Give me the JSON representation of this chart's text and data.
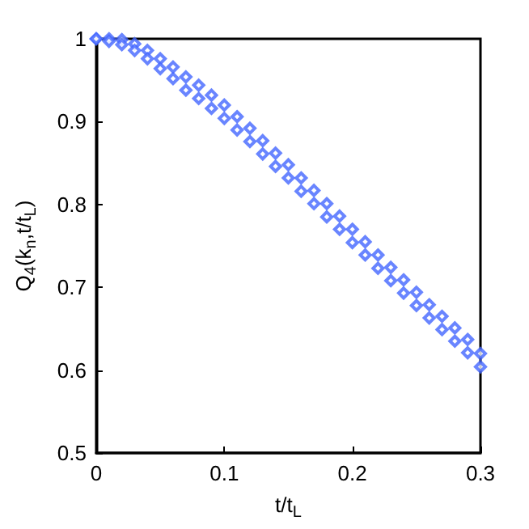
{
  "chart_data": {
    "type": "scatter",
    "xlabel": "t/t$_{L}$",
    "ylabel": "Q$_{4}$(k$_{n}$,t/t$_{L}$)",
    "x": [
      0,
      0.01,
      0.02,
      0.03,
      0.04,
      0.05,
      0.06,
      0.07,
      0.08,
      0.09,
      0.1,
      0.11,
      0.12,
      0.13,
      0.14,
      0.15,
      0.16,
      0.17,
      0.18,
      0.19,
      0.2,
      0.21,
      0.22,
      0.23,
      0.24,
      0.25,
      0.26,
      0.27,
      0.28,
      0.29,
      0.3
    ],
    "series": [
      {
        "color": "#4466ff",
        "values": [
          1.0,
          1.0,
          0.999,
          0.994,
          0.986,
          0.976,
          0.966,
          0.954,
          0.944,
          0.932,
          0.92,
          0.906,
          0.892,
          0.877,
          0.862,
          0.848,
          0.832,
          0.817,
          0.801,
          0.786,
          0.77,
          0.755,
          0.739,
          0.724,
          0.709,
          0.694,
          0.679,
          0.665,
          0.651,
          0.637,
          0.62
        ]
      },
      {
        "color": "#4466ff",
        "values": [
          1.0,
          0.997,
          0.993,
          0.986,
          0.976,
          0.964,
          0.952,
          0.938,
          0.928,
          0.916,
          0.904,
          0.89,
          0.876,
          0.861,
          0.846,
          0.832,
          0.816,
          0.801,
          0.785,
          0.77,
          0.754,
          0.739,
          0.723,
          0.708,
          0.693,
          0.678,
          0.663,
          0.649,
          0.635,
          0.621,
          0.604
        ]
      }
    ],
    "xlim": [
      0,
      0.3
    ],
    "xticks": [
      0,
      0.1,
      0.2,
      0.3
    ],
    "ylim": [
      0.5,
      1
    ],
    "yticks": [
      0.5,
      0.6,
      0.7,
      0.8,
      0.9,
      1
    ],
    "marker": "diamond",
    "grid": false
  }
}
